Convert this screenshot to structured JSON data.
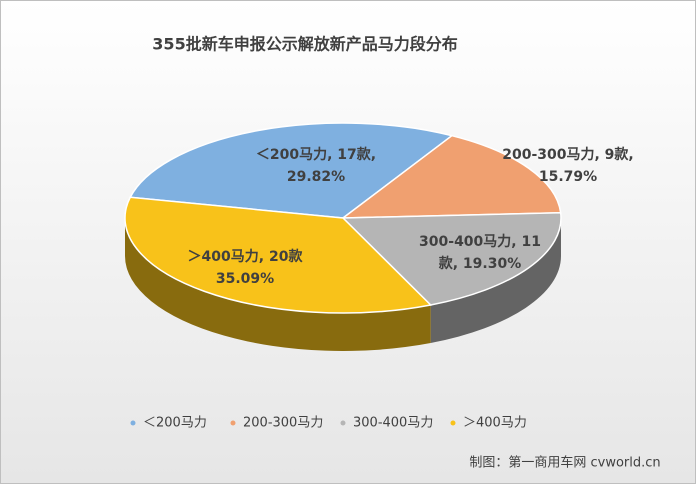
{
  "chart_data": {
    "type": "pie",
    "title": "355批新车申报公示解放新产品马力段分布",
    "categories": [
      "＜200马力",
      "200-300马力",
      "300-400马力",
      "＞400马力"
    ],
    "values": [
      17,
      9,
      11,
      20
    ],
    "value_labels": [
      [
        "＜200马力, 17款,",
        "29.82%"
      ],
      [
        "200-300马力, 9款,",
        "15.79%"
      ],
      [
        "300-400马力, 11",
        "款, 19.30%"
      ],
      [
        "＞400马力, 20款",
        "35.09%"
      ]
    ],
    "colors": [
      "#7fb0e0",
      "#f0a070",
      "#b5b5b5",
      "#f8c21a"
    ],
    "legend": "bottom",
    "source": "制图：第一商用车网 cvworld.cn"
  }
}
